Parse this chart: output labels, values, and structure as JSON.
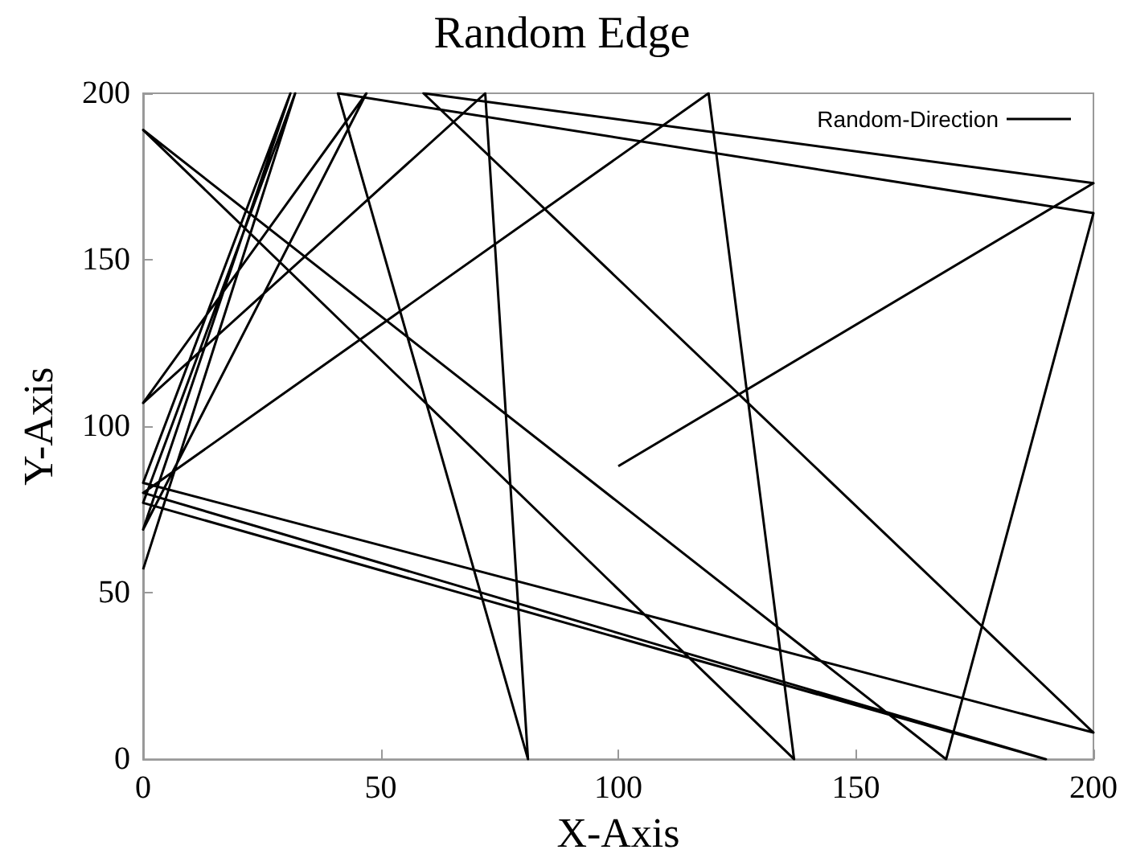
{
  "chart_data": {
    "type": "line",
    "title": "Random Edge",
    "xlabel": "X-Axis",
    "ylabel": "Y-Axis",
    "xlim": [
      0,
      200
    ],
    "xticks": [
      0,
      50,
      100,
      150,
      200
    ],
    "ylim": [
      0,
      200
    ],
    "yticks": [
      0,
      50,
      100,
      150,
      200
    ],
    "grid": false,
    "legend": "top right",
    "marker": "none",
    "line_style": "solid",
    "series": [
      {
        "name": "Random-Direction",
        "color": "#000000",
        "x": [
          100,
          200,
          59,
          200,
          0,
          31,
          0,
          47,
          0,
          72,
          81,
          41,
          200,
          169,
          0,
          137,
          119,
          0,
          190,
          0,
          32,
          0
        ],
        "values": [
          88,
          173,
          200,
          8,
          83,
          200,
          69,
          200,
          107,
          200,
          0,
          200,
          164,
          0,
          189,
          0,
          200,
          80,
          0,
          77,
          200,
          57
        ]
      }
    ]
  }
}
